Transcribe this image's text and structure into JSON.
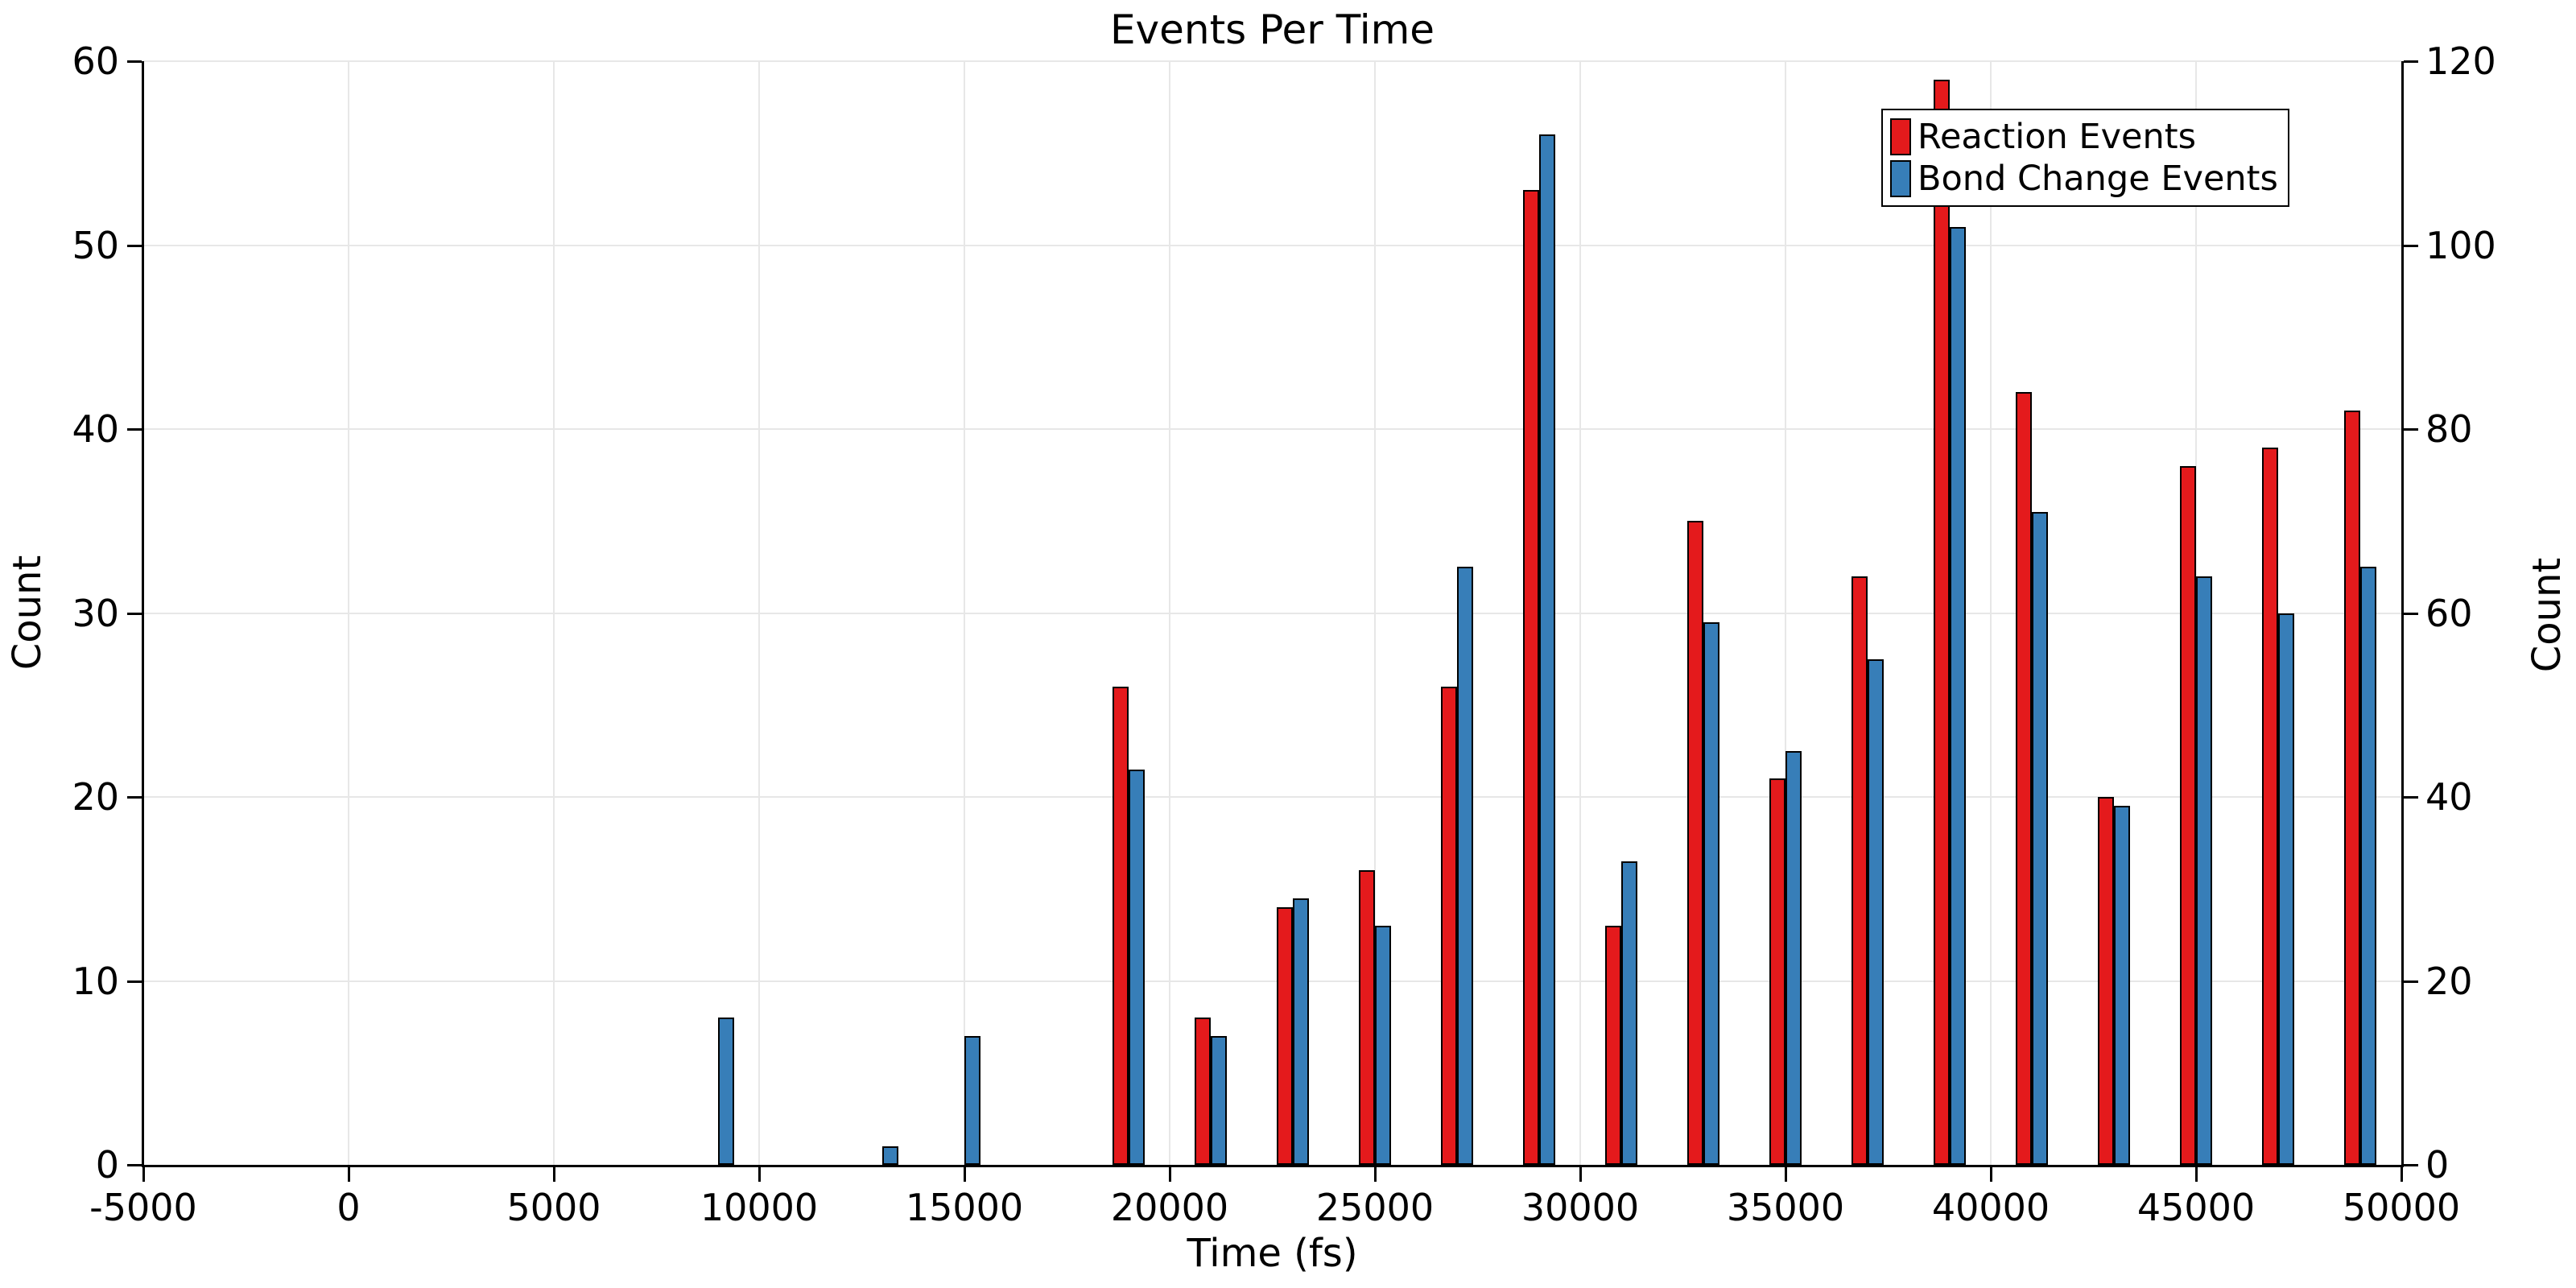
{
  "figure": {
    "title": "Events Per Time"
  },
  "chart_data": {
    "type": "bar",
    "title": "Events Per Time",
    "xlabel": "Time (fs)",
    "ylabel_left": "Count",
    "ylabel_right": "Count",
    "xlim": [
      -5000,
      50000
    ],
    "ylim_left": [
      0,
      60
    ],
    "ylim_right": [
      0,
      120
    ],
    "x_ticks": [
      -5000,
      0,
      5000,
      10000,
      15000,
      20000,
      25000,
      30000,
      35000,
      40000,
      45000,
      50000
    ],
    "y_ticks_left": [
      0,
      10,
      20,
      30,
      40,
      50,
      60
    ],
    "y_ticks_right": [
      0,
      20,
      40,
      60,
      80,
      100,
      120
    ],
    "grid": true,
    "legend_position": "upper right",
    "bin_centers": [
      9000,
      13000,
      15000,
      19000,
      21000,
      23000,
      25000,
      27000,
      29000,
      31000,
      33000,
      35000,
      37000,
      39000,
      41000,
      43000,
      45000,
      47000,
      49000
    ],
    "bar_width_fs": 400,
    "series": [
      {
        "name": "Reaction Events",
        "color": "#e41a1c",
        "axis": "left",
        "values": [
          0,
          0,
          0,
          26,
          8,
          14,
          16,
          26,
          53,
          13,
          35,
          21,
          32,
          59,
          42,
          20,
          38,
          39,
          41
        ]
      },
      {
        "name": "Bond Change Events",
        "color": "#377eb8",
        "axis": "right",
        "values": [
          16,
          2,
          14,
          43,
          14,
          29,
          26,
          65,
          112,
          33,
          59,
          45,
          55,
          102,
          71,
          39,
          64,
          60,
          65
        ]
      }
    ],
    "colors": {
      "grid": "#e7e7e7",
      "spine": "#000000",
      "text": "#000000",
      "legend_border": "#000000"
    }
  }
}
